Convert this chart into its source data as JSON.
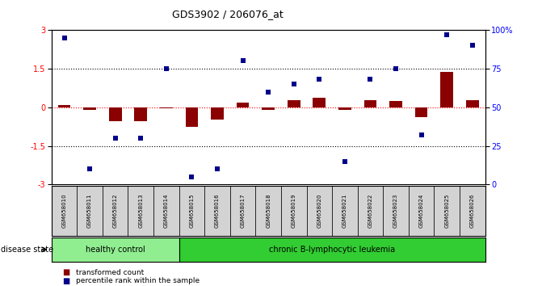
{
  "title": "GDS3902 / 206076_at",
  "samples": [
    "GSM658010",
    "GSM658011",
    "GSM658012",
    "GSM658013",
    "GSM658014",
    "GSM658015",
    "GSM658016",
    "GSM658017",
    "GSM658018",
    "GSM658019",
    "GSM658020",
    "GSM658021",
    "GSM658022",
    "GSM658023",
    "GSM658024",
    "GSM658025",
    "GSM658026"
  ],
  "transformed_count": [
    0.08,
    -0.1,
    -0.55,
    -0.55,
    -0.05,
    -0.75,
    -0.48,
    0.17,
    -0.1,
    0.28,
    0.38,
    -0.1,
    0.28,
    0.25,
    -0.38,
    1.38,
    0.28
  ],
  "percentile_rank": [
    95,
    10,
    30,
    30,
    75,
    5,
    10,
    80,
    60,
    65,
    68,
    15,
    68,
    75,
    32,
    97,
    90
  ],
  "bar_color": "#8B0000",
  "dot_color": "#00008B",
  "hc_count": 5,
  "hc_label": "healthy control",
  "cll_label": "chronic B-lymphocytic leukemia",
  "disease_label": "disease state",
  "legend_bar": "transformed count",
  "legend_dot": "percentile rank within the sample",
  "ylim_left": [
    -3,
    3
  ],
  "ylim_right": [
    0,
    100
  ],
  "yticks_left": [
    -3,
    -1.5,
    0,
    1.5,
    3
  ],
  "yticks_right": [
    0,
    25,
    50,
    75,
    100
  ],
  "ytick_labels_right": [
    "0",
    "25",
    "50",
    "75",
    "100%"
  ],
  "hc_color": "#90EE90",
  "cll_color": "#32CD32",
  "figwidth": 6.71,
  "figheight": 3.54
}
